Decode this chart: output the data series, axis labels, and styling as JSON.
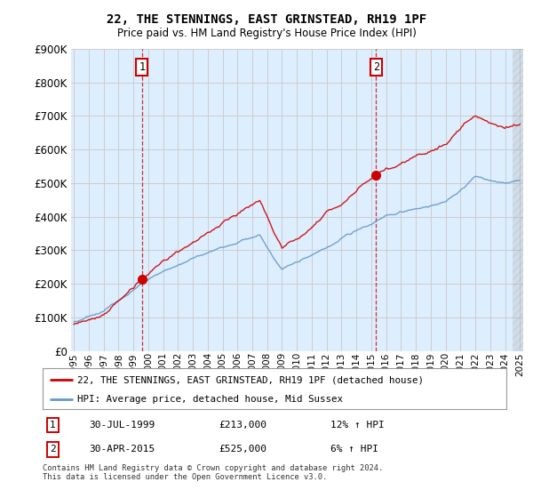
{
  "title1": "22, THE STENNINGS, EAST GRINSTEAD, RH19 1PF",
  "title2": "Price paid vs. HM Land Registry's House Price Index (HPI)",
  "legend_line1": "22, THE STENNINGS, EAST GRINSTEAD, RH19 1PF (detached house)",
  "legend_line2": "HPI: Average price, detached house, Mid Sussex",
  "footnote": "Contains HM Land Registry data © Crown copyright and database right 2024.\nThis data is licensed under the Open Government Licence v3.0.",
  "sale1_date": "30-JUL-1999",
  "sale1_price": "£213,000",
  "sale1_hpi": "12% ↑ HPI",
  "sale1_year": 1999.58,
  "sale1_value": 213000,
  "sale2_date": "30-APR-2015",
  "sale2_price": "£525,000",
  "sale2_hpi": "6% ↑ HPI",
  "sale2_year": 2015.33,
  "sale2_value": 525000,
  "red_color": "#cc0000",
  "blue_color": "#6699cc",
  "blue_fill": "#ddeeff",
  "grid_color": "#cccccc",
  "ylim": [
    0,
    900000
  ],
  "yticks": [
    0,
    100000,
    200000,
    300000,
    400000,
    500000,
    600000,
    700000,
    800000,
    900000
  ],
  "background_color": "#ffffff",
  "plot_bg_color": "#ddeeff"
}
